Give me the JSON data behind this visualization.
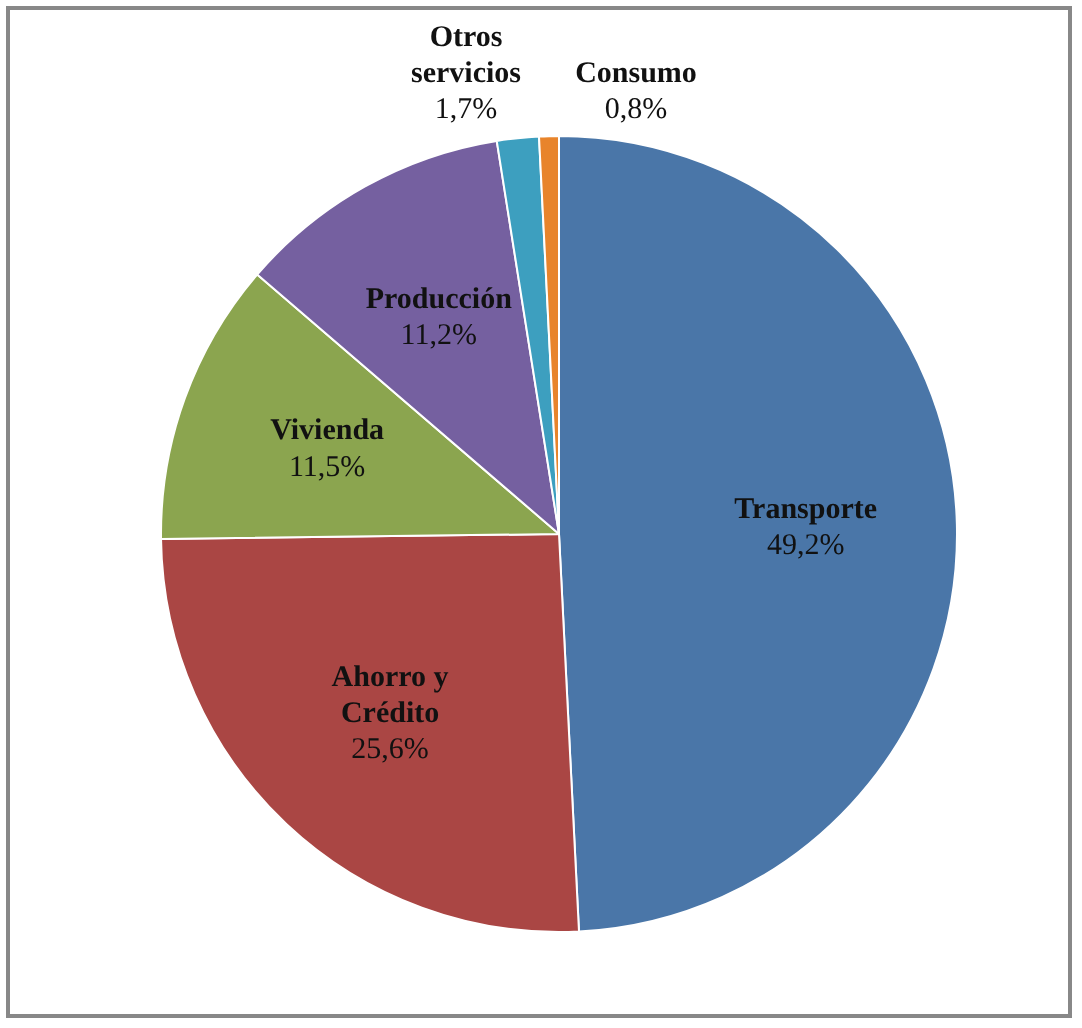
{
  "chart_data": {
    "type": "pie",
    "categories": [
      "Transporte",
      "Ahorro y Crédito",
      "Vivienda",
      "Producción",
      "Otros servicios",
      "Consumo"
    ],
    "values": [
      49.2,
      25.6,
      11.5,
      11.2,
      1.7,
      0.8
    ],
    "colors": [
      "#4a76a8",
      "#aa4644",
      "#8ba54f",
      "#7560a0",
      "#3d9fbf",
      "#e8842b"
    ],
    "value_labels": [
      "49,2%",
      "25,6%",
      "11,5%",
      "11,2%",
      "1,7%",
      "0,8%"
    ]
  }
}
